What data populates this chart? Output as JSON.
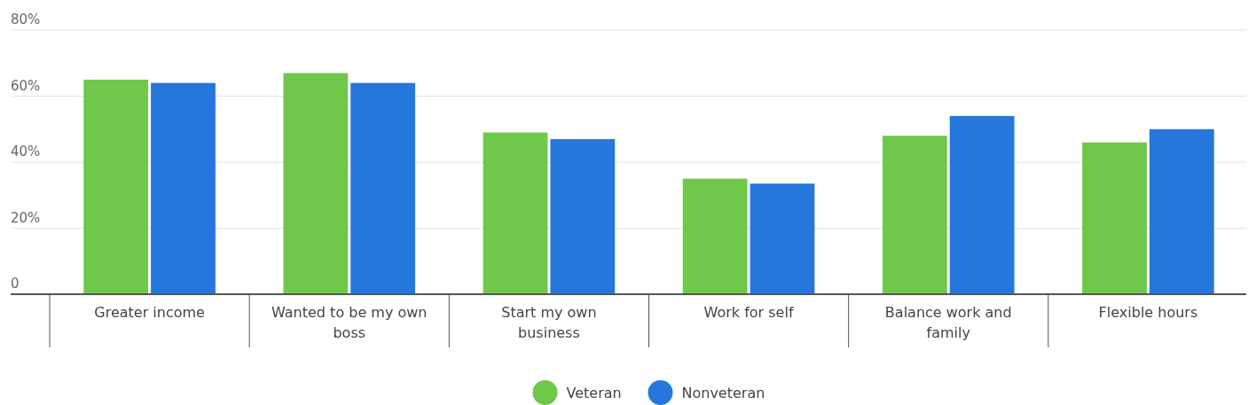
{
  "chart_data": {
    "type": "bar",
    "categories": [
      "Greater income",
      "Wanted to be my own boss",
      "Start my own business",
      "Work for self",
      "Balance work and family",
      "Flexible hours"
    ],
    "series": [
      {
        "name": "Veteran",
        "color": "#6fc84a",
        "values": [
          65,
          67,
          49,
          35,
          48,
          46
        ]
      },
      {
        "name": "Nonveteran",
        "color": "#2577db",
        "values": [
          64,
          64,
          47,
          33.5,
          54,
          50
        ]
      }
    ],
    "ylim": [
      0,
      80
    ],
    "yticks": [
      {
        "value": 0,
        "label": "0"
      },
      {
        "value": 20,
        "label": "20%"
      },
      {
        "value": 40,
        "label": "40%"
      },
      {
        "value": 60,
        "label": "60%"
      },
      {
        "value": 80,
        "label": "80%"
      }
    ],
    "grid": "y",
    "legend": "bottom"
  }
}
